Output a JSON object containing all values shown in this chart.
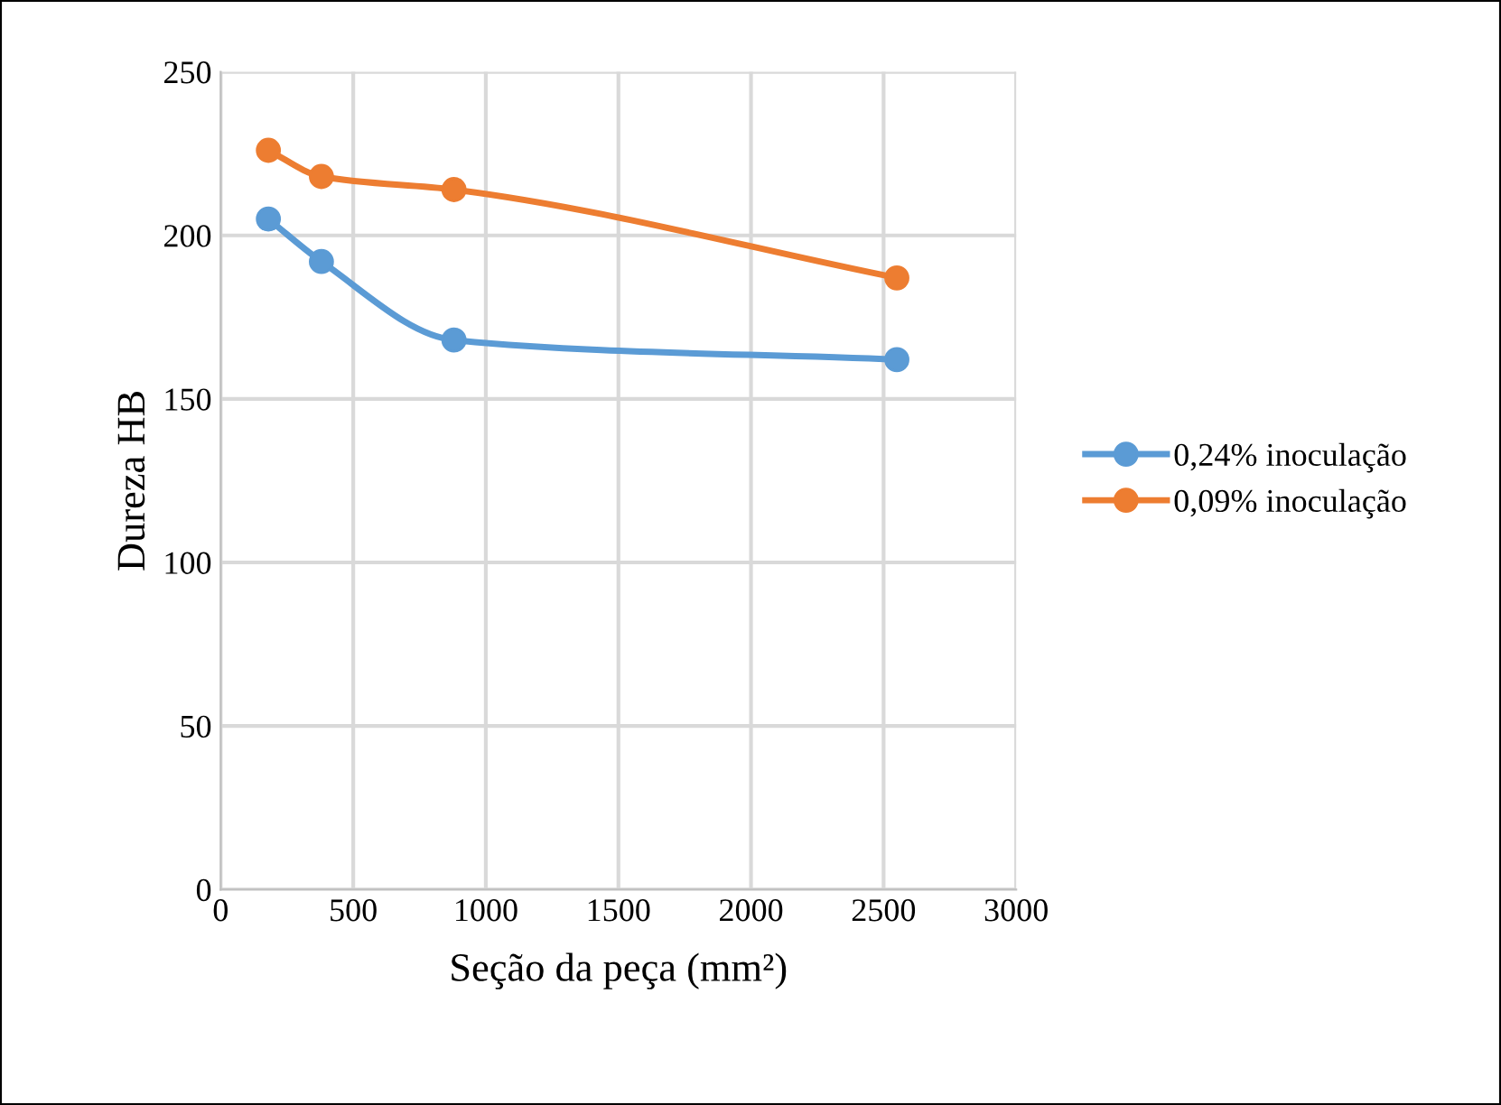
{
  "chart_data": {
    "type": "line",
    "xlabel": "Seção da peça (mm²)",
    "ylabel": "Dureza HB",
    "x": [
      180,
      380,
      880,
      2550
    ],
    "series": [
      {
        "name": "0,24% inoculação",
        "color": "#5b9bd5",
        "values": [
          205,
          192,
          168,
          162
        ]
      },
      {
        "name": "0,09% inoculação",
        "color": "#ed7d31",
        "values": [
          226,
          218,
          214,
          187
        ]
      }
    ],
    "xlim": [
      0,
      3000
    ],
    "xticks": [
      0,
      500,
      1000,
      1500,
      2000,
      2500,
      3000
    ],
    "ylim": [
      0,
      250
    ],
    "yticks": [
      0,
      50,
      100,
      150,
      200,
      250
    ],
    "grid": true,
    "legend": "right",
    "marker": "circle",
    "line_style": "solid"
  }
}
